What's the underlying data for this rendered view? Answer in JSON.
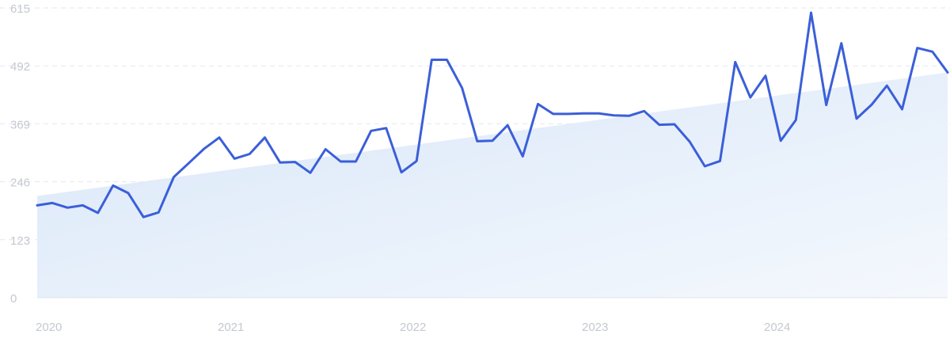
{
  "chart_data": {
    "type": "line",
    "title": "",
    "xlabel": "",
    "ylabel": "",
    "ylim": [
      0,
      615
    ],
    "y_ticks": [
      "0",
      "123",
      "246",
      "369",
      "492",
      "615"
    ],
    "x_ticks": [
      {
        "label": "2020",
        "at": 0
      },
      {
        "label": "2021",
        "at": 12
      },
      {
        "label": "2022",
        "at": 24
      },
      {
        "label": "2023",
        "at": 36
      },
      {
        "label": "2024",
        "at": 48
      }
    ],
    "grid": true,
    "legend": "none",
    "colors": {
      "line": "#3b5fd9",
      "trend_fill": "#dce9f9",
      "grid": "#e3e7ed",
      "tick_text": "#c4c8cf"
    },
    "trend": {
      "start": 216,
      "end": 478
    },
    "series": [
      {
        "values": [
          196,
          201,
          191,
          196,
          180,
          238,
          222,
          171,
          181,
          256,
          286,
          316,
          340,
          295,
          305,
          340,
          287,
          288,
          265,
          315,
          289,
          289,
          354,
          360,
          266,
          290,
          505,
          505,
          445,
          332,
          333,
          366,
          300,
          411,
          390,
          390,
          391,
          391,
          387,
          386,
          396,
          367,
          368,
          331,
          279,
          290,
          500,
          425,
          471,
          333,
          377,
          605,
          409,
          540,
          380,
          410,
          450,
          400,
          530,
          522,
          478
        ]
      }
    ]
  }
}
